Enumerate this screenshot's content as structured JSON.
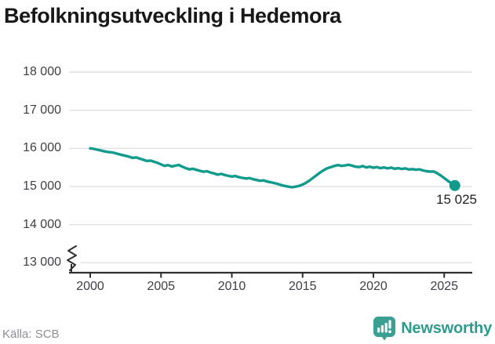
{
  "header": {
    "title": "Befolkningsutveckling i Hedemora"
  },
  "footer": {
    "source_label": "Källa: SCB",
    "brand_name": "Newsworthy",
    "brand_icon": "newsworthy-bar-chart-bubble-icon"
  },
  "colors": {
    "line": "#109b8c",
    "dot": "#109b8c",
    "grid": "#e1e1e1",
    "axis": "#2f2f2f",
    "tick_label": "#3e3e46",
    "title": "#181818",
    "end_label": "#1f1f1f",
    "source": "#8e8e96",
    "brand": "#2d9c8e",
    "brand_icon_fill": "#3aa092"
  },
  "chart_data": {
    "type": "line",
    "title": "Befolkningsutveckling i Hedemora",
    "xlabel": "",
    "ylabel": "",
    "legend": "none",
    "grid": "horizontal",
    "x_axis": {
      "ticks": [
        2000,
        2005,
        2010,
        2015,
        2020,
        2025
      ],
      "tick_labels": [
        "2000",
        "2005",
        "2010",
        "2015",
        "2020",
        "2025"
      ]
    },
    "y_axis": {
      "ticks": [
        18000,
        17000,
        16000,
        15000,
        14000,
        13000
      ],
      "tick_labels": [
        "18 000",
        "17 000",
        "16 000",
        "15 000",
        "14 000",
        "13 000"
      ],
      "range_shown": [
        13000,
        18000
      ],
      "axis_break": true
    },
    "end_label": "15 025",
    "last_point": {
      "x": 2025.75,
      "value": 15025
    },
    "series": [
      {
        "name": "Hedemora",
        "color": "#109b8c",
        "points": [
          [
            2000.0,
            16000
          ],
          [
            2000.25,
            15985
          ],
          [
            2000.5,
            15965
          ],
          [
            2000.75,
            15945
          ],
          [
            2001.0,
            15920
          ],
          [
            2001.25,
            15905
          ],
          [
            2001.5,
            15895
          ],
          [
            2001.75,
            15875
          ],
          [
            2002.0,
            15850
          ],
          [
            2002.25,
            15825
          ],
          [
            2002.5,
            15805
          ],
          [
            2002.75,
            15780
          ],
          [
            2003.0,
            15750
          ],
          [
            2003.25,
            15765
          ],
          [
            2003.5,
            15730
          ],
          [
            2003.75,
            15700
          ],
          [
            2004.0,
            15670
          ],
          [
            2004.25,
            15680
          ],
          [
            2004.5,
            15650
          ],
          [
            2004.75,
            15620
          ],
          [
            2005.0,
            15580
          ],
          [
            2005.25,
            15540
          ],
          [
            2005.5,
            15560
          ],
          [
            2005.75,
            15525
          ],
          [
            2006.0,
            15545
          ],
          [
            2006.25,
            15565
          ],
          [
            2006.5,
            15520
          ],
          [
            2006.75,
            15480
          ],
          [
            2007.0,
            15450
          ],
          [
            2007.25,
            15465
          ],
          [
            2007.5,
            15435
          ],
          [
            2007.75,
            15410
          ],
          [
            2008.0,
            15385
          ],
          [
            2008.25,
            15400
          ],
          [
            2008.5,
            15365
          ],
          [
            2008.75,
            15340
          ],
          [
            2009.0,
            15310
          ],
          [
            2009.25,
            15330
          ],
          [
            2009.5,
            15300
          ],
          [
            2009.75,
            15280
          ],
          [
            2010.0,
            15260
          ],
          [
            2010.25,
            15275
          ],
          [
            2010.5,
            15245
          ],
          [
            2010.75,
            15225
          ],
          [
            2011.0,
            15210
          ],
          [
            2011.25,
            15220
          ],
          [
            2011.5,
            15190
          ],
          [
            2011.75,
            15170
          ],
          [
            2012.0,
            15150
          ],
          [
            2012.25,
            15160
          ],
          [
            2012.5,
            15130
          ],
          [
            2012.75,
            15110
          ],
          [
            2013.0,
            15090
          ],
          [
            2013.25,
            15065
          ],
          [
            2013.5,
            15035
          ],
          [
            2013.75,
            15015
          ],
          [
            2014.0,
            14995
          ],
          [
            2014.25,
            14980
          ],
          [
            2014.5,
            14995
          ],
          [
            2014.75,
            15015
          ],
          [
            2015.0,
            15050
          ],
          [
            2015.25,
            15100
          ],
          [
            2015.5,
            15160
          ],
          [
            2015.75,
            15230
          ],
          [
            2016.0,
            15300
          ],
          [
            2016.25,
            15370
          ],
          [
            2016.5,
            15430
          ],
          [
            2016.75,
            15480
          ],
          [
            2017.0,
            15510
          ],
          [
            2017.25,
            15540
          ],
          [
            2017.5,
            15560
          ],
          [
            2017.75,
            15540
          ],
          [
            2018.0,
            15550
          ],
          [
            2018.25,
            15570
          ],
          [
            2018.5,
            15545
          ],
          [
            2018.75,
            15520
          ],
          [
            2019.0,
            15510
          ],
          [
            2019.25,
            15535
          ],
          [
            2019.5,
            15500
          ],
          [
            2019.75,
            15520
          ],
          [
            2020.0,
            15490
          ],
          [
            2020.25,
            15510
          ],
          [
            2020.5,
            15480
          ],
          [
            2020.75,
            15500
          ],
          [
            2021.0,
            15475
          ],
          [
            2021.25,
            15495
          ],
          [
            2021.5,
            15465
          ],
          [
            2021.75,
            15480
          ],
          [
            2022.0,
            15460
          ],
          [
            2022.25,
            15475
          ],
          [
            2022.5,
            15445
          ],
          [
            2022.75,
            15455
          ],
          [
            2023.0,
            15440
          ],
          [
            2023.25,
            15450
          ],
          [
            2023.5,
            15420
          ],
          [
            2023.75,
            15400
          ],
          [
            2024.0,
            15390
          ],
          [
            2024.25,
            15395
          ],
          [
            2024.5,
            15350
          ],
          [
            2024.75,
            15290
          ],
          [
            2025.0,
            15220
          ],
          [
            2025.25,
            15150
          ],
          [
            2025.5,
            15085
          ],
          [
            2025.75,
            15025
          ]
        ]
      }
    ]
  }
}
